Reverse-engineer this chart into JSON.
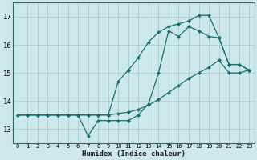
{
  "xlabel": "Humidex (Indice chaleur)",
  "bg_color": "#cce8e8",
  "grid_color": "#aacccc",
  "line_color": "#1a6e6e",
  "xlim": [
    -0.5,
    23.5
  ],
  "ylim": [
    12.5,
    17.5
  ],
  "yticks": [
    13,
    14,
    15,
    16,
    17
  ],
  "xticks": [
    0,
    1,
    2,
    3,
    4,
    5,
    6,
    7,
    8,
    9,
    10,
    11,
    12,
    13,
    14,
    15,
    16,
    17,
    18,
    19,
    20,
    21,
    22,
    23
  ],
  "series": [
    {
      "x": [
        0,
        1,
        2,
        3,
        4,
        5,
        6,
        7,
        8,
        9,
        10,
        11,
        12,
        13,
        14,
        15,
        16,
        17,
        18,
        19,
        20,
        21,
        22,
        23
      ],
      "y": [
        13.5,
        13.5,
        13.5,
        13.5,
        13.5,
        13.5,
        13.5,
        12.75,
        13.3,
        13.3,
        13.3,
        13.3,
        13.5,
        13.9,
        15.0,
        16.5,
        16.3,
        16.65,
        16.5,
        16.3,
        16.25,
        15.3,
        15.3,
        15.1
      ]
    },
    {
      "x": [
        0,
        1,
        2,
        3,
        4,
        5,
        6,
        7,
        8,
        9,
        10,
        11,
        12,
        13,
        14,
        15,
        16,
        17,
        18,
        19,
        20,
        21,
        22,
        23
      ],
      "y": [
        13.5,
        13.5,
        13.5,
        13.5,
        13.5,
        13.5,
        13.5,
        13.5,
        13.5,
        13.5,
        14.7,
        15.1,
        15.55,
        16.1,
        16.45,
        16.65,
        16.75,
        16.85,
        17.05,
        17.05,
        16.25,
        15.3,
        15.3,
        15.1
      ]
    },
    {
      "x": [
        0,
        1,
        2,
        3,
        4,
        5,
        6,
        7,
        8,
        9,
        10,
        11,
        12,
        13,
        14,
        15,
        16,
        17,
        18,
        19,
        20,
        21,
        22,
        23
      ],
      "y": [
        13.5,
        13.5,
        13.5,
        13.5,
        13.5,
        13.5,
        13.5,
        13.5,
        13.5,
        13.5,
        13.55,
        13.6,
        13.7,
        13.85,
        14.05,
        14.3,
        14.55,
        14.8,
        15.0,
        15.2,
        15.45,
        15.0,
        15.0,
        15.1
      ]
    }
  ]
}
